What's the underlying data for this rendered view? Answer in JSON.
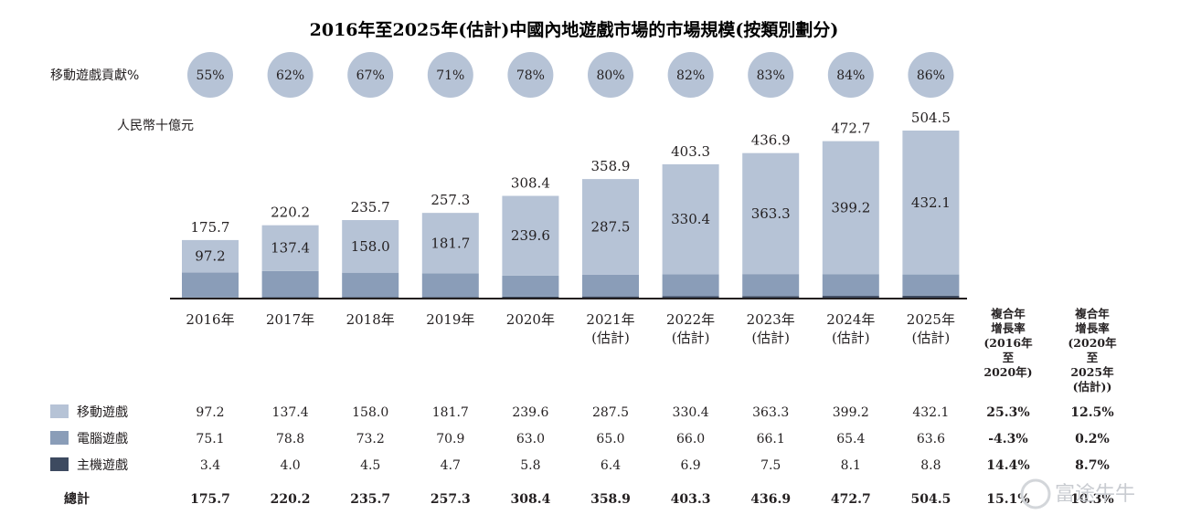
{
  "title": "2016年至2025年(估計)中國內地遊戲市場的市場規模(按類別劃分)",
  "mobile_share_label": "移動遊戲貢獻%",
  "unit_label": "人民幣十億元",
  "colors": {
    "mobile": "#b6c3d6",
    "pc": "#8a9db8",
    "console": "#3d4a60",
    "bubble": "#b6c3d6",
    "axis": "#231f20"
  },
  "chart_data": {
    "type": "bar",
    "stacked": true,
    "categories": [
      "2016年",
      "2017年",
      "2018年",
      "2019年",
      "2020年",
      "2021年(估計)",
      "2022年(估計)",
      "2023年(估計)",
      "2024年(估計)",
      "2025年(估計)"
    ],
    "category_lines": [
      [
        "2016年"
      ],
      [
        "2017年"
      ],
      [
        "2018年"
      ],
      [
        "2019年"
      ],
      [
        "2020年"
      ],
      [
        "2021年",
        "(估計)"
      ],
      [
        "2022年",
        "(估計)"
      ],
      [
        "2023年",
        "(估計)"
      ],
      [
        "2024年",
        "(估計)"
      ],
      [
        "2025年",
        "(估計)"
      ]
    ],
    "series": [
      {
        "name": "主機遊戲",
        "key": "console",
        "values": [
          3.4,
          4.0,
          4.5,
          4.7,
          5.8,
          6.4,
          6.9,
          7.5,
          8.1,
          8.8
        ]
      },
      {
        "name": "電腦遊戲",
        "key": "pc",
        "values": [
          75.1,
          78.8,
          73.2,
          70.9,
          63.0,
          65.0,
          66.0,
          66.1,
          65.4,
          63.6
        ]
      },
      {
        "name": "移動遊戲",
        "key": "mobile",
        "values": [
          97.2,
          137.4,
          158.0,
          181.7,
          239.6,
          287.5,
          330.4,
          363.3,
          399.2,
          432.1
        ]
      }
    ],
    "totals": [
      175.7,
      220.2,
      235.7,
      257.3,
      308.4,
      358.9,
      403.3,
      436.9,
      472.7,
      504.5
    ],
    "mobile_share": [
      "55%",
      "62%",
      "67%",
      "71%",
      "78%",
      "80%",
      "82%",
      "83%",
      "84%",
      "86%"
    ],
    "ylim": [
      0,
      504.5
    ]
  },
  "table": {
    "rows": [
      {
        "label": "移動遊戲",
        "swatch": "mobile",
        "values": [
          "97.2",
          "137.4",
          "158.0",
          "181.7",
          "239.6",
          "287.5",
          "330.4",
          "363.3",
          "399.2",
          "432.1"
        ],
        "cagr1": "25.3%",
        "cagr2": "12.5%"
      },
      {
        "label": "電腦遊戲",
        "swatch": "pc",
        "values": [
          "75.1",
          "78.8",
          "73.2",
          "70.9",
          "63.0",
          "65.0",
          "66.0",
          "66.1",
          "65.4",
          "63.6"
        ],
        "cagr1": "-4.3%",
        "cagr2": "0.2%"
      },
      {
        "label": "主機遊戲",
        "swatch": "console",
        "values": [
          "3.4",
          "4.0",
          "4.5",
          "4.7",
          "5.8",
          "6.4",
          "6.9",
          "7.5",
          "8.1",
          "8.8"
        ],
        "cagr1": "14.4%",
        "cagr2": "8.7%"
      },
      {
        "label": "總計",
        "swatch": null,
        "bold": true,
        "values": [
          "175.7",
          "220.2",
          "235.7",
          "257.3",
          "308.4",
          "358.9",
          "403.3",
          "436.9",
          "472.7",
          "504.5"
        ],
        "cagr1": "15.1%",
        "cagr2": "10.3%"
      }
    ],
    "cagr_header_1": [
      "複合年",
      "增長率",
      "(2016年",
      "至",
      "2020年)"
    ],
    "cagr_header_2": [
      "複合年",
      "增長率",
      "(2020年",
      "至",
      "2025年",
      "(估計))"
    ]
  },
  "watermark": "富途牛牛"
}
